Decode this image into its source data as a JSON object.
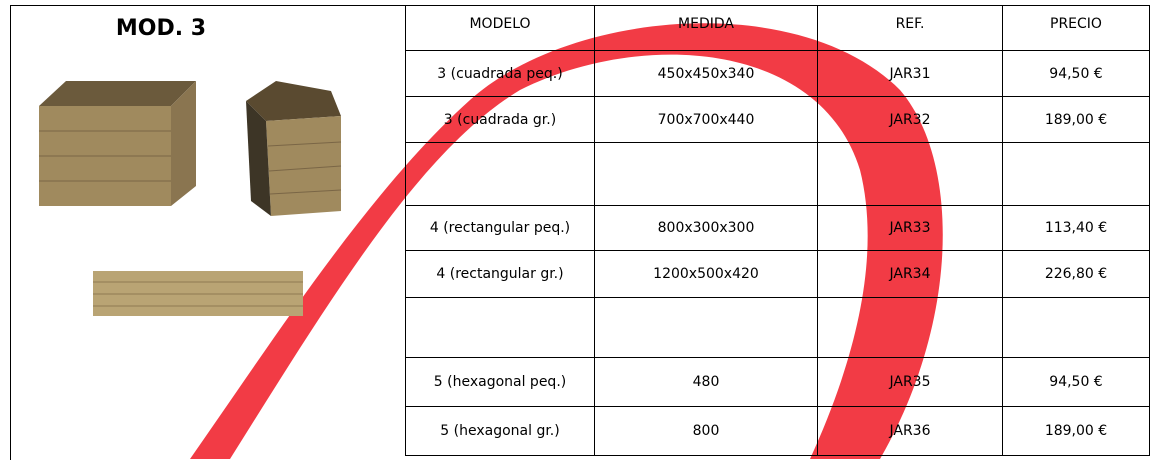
{
  "header": {
    "title": "MOD. 3"
  },
  "table": {
    "columns": [
      "MODELO",
      "MEDIDA",
      "REF.",
      "PRECIO"
    ],
    "rows": [
      [
        "3 (cuadrada peq.)",
        "450x450x340",
        "JAR31",
        "94,50 €"
      ],
      [
        "3 (cuadrada gr.)",
        "700x700x440",
        "JAR32",
        "189,00 €"
      ],
      [
        "4 (rectangular peq.)",
        "800x300x300",
        "JAR33",
        "113,40 €"
      ],
      [
        "4 (rectangular gr.)",
        "1200x500x420",
        "JAR34",
        "226,80 €"
      ],
      [
        "5 (hexagonal peq.)",
        "480",
        "JAR35",
        "94,50 €"
      ],
      [
        "5 (hexagonal gr.)",
        "800",
        "JAR36",
        "189,00 €"
      ]
    ]
  }
}
